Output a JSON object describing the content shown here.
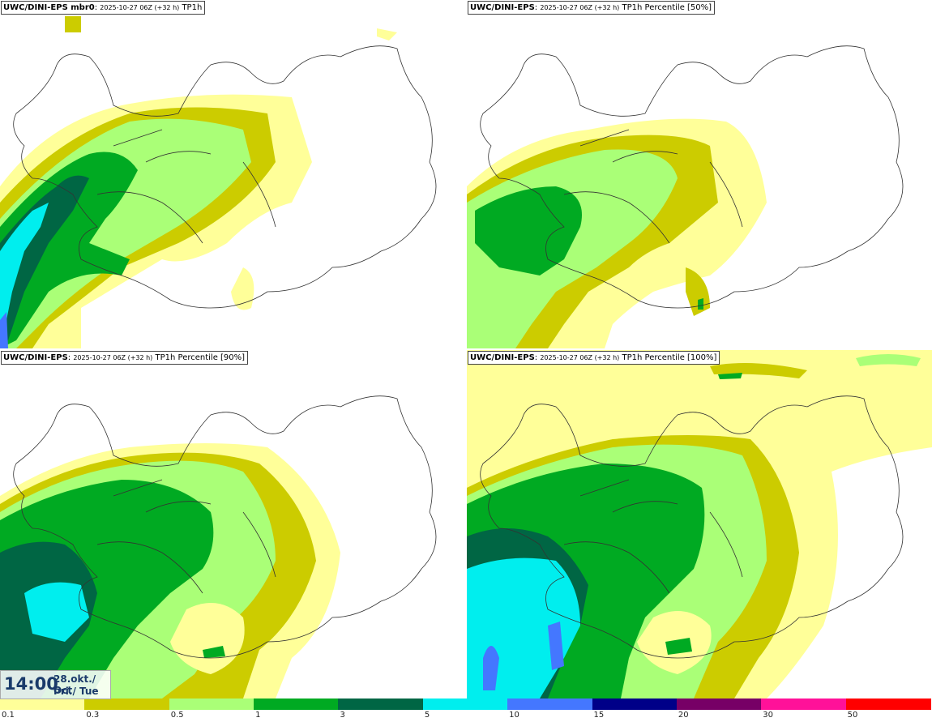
{
  "panels": [
    {
      "model": "UWC/DINI-EPS mbr0",
      "valid": "2025-10-27 06Z (+32 h)",
      "field": "TP1h"
    },
    {
      "model": "UWC/DINI-EPS",
      "valid": "2025-10-27 06Z (+32 h)",
      "field": "TP1h Percentile [50%]"
    },
    {
      "model": "UWC/DINI-EPS",
      "valid": "2025-10-27 06Z (+32 h)",
      "field": "TP1h Percentile [90%]"
    },
    {
      "model": "UWC/DINI-EPS",
      "valid": "2025-10-27 06Z (+32 h)",
      "field": "TP1h Percentile [100%]"
    }
  ],
  "time_box": {
    "time": "14:00",
    "date_line1": "28.okt./ Oct",
    "date_line2": "Þri./ Tue"
  },
  "colorbar": {
    "ticks": [
      "0.1",
      "0.3",
      "0.5",
      "1",
      "3",
      "5",
      "10",
      "15",
      "20",
      "30",
      "50"
    ],
    "colors": [
      "#ffff99",
      "#cccc00",
      "#aaff77",
      "#00aa22",
      "#006644",
      "#00eeee",
      "#4477ff",
      "#000088",
      "#770066",
      "#ff1199",
      "#ff0000"
    ]
  }
}
